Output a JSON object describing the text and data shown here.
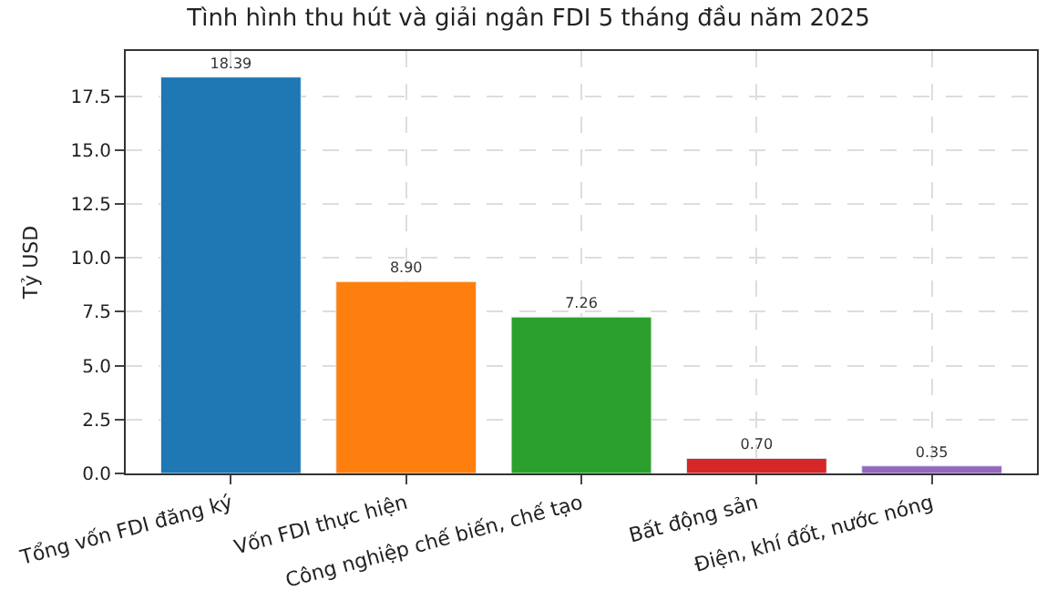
{
  "chart_data": {
    "type": "bar",
    "title": "Tình hình thu hút và giải ngân FDI 5 tháng đầu năm 2025",
    "ylabel": "Tỷ USD",
    "categories": [
      "Tổng vốn FDI đăng ký",
      "Vốn FDI thực hiện",
      "Công nghiệp chế biến, chế tạo",
      "Bất động sản",
      "Điện, khí đốt, nước nóng"
    ],
    "values": [
      18.39,
      8.9,
      7.26,
      0.7,
      0.35
    ],
    "value_labels": [
      "18.39",
      "8.90",
      "7.26",
      "0.70",
      "0.35"
    ],
    "colors": [
      "#1f77b4",
      "#ff7f0e",
      "#2ca02c",
      "#d62728",
      "#9467bd"
    ],
    "ylim": [
      0,
      19.6
    ],
    "yticks": [
      {
        "value": 0,
        "label": "0.0"
      },
      {
        "value": 2.5,
        "label": "2.5"
      },
      {
        "value": 5,
        "label": "5.0"
      },
      {
        "value": 7.5,
        "label": "7.5"
      },
      {
        "value": 10,
        "label": "10.0"
      },
      {
        "value": 12.5,
        "label": "12.5"
      },
      {
        "value": 15,
        "label": "15.0"
      },
      {
        "value": 17.5,
        "label": "17.5"
      }
    ],
    "grid": true
  }
}
